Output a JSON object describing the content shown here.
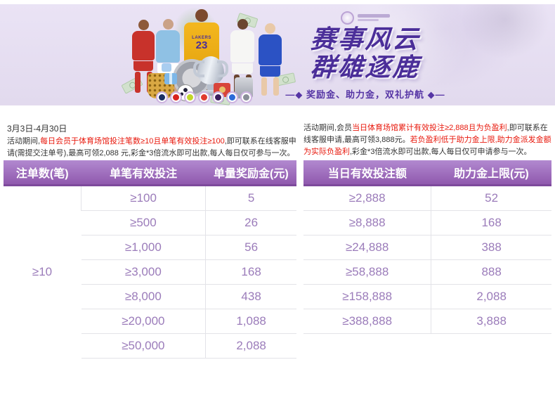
{
  "banner": {
    "title_line1": "赛事风云",
    "title_line2": "群雄逐鹿",
    "subtitle_full": "—◆ 奖励金、助力金，双礼护航 ◆—",
    "lakers_jersey": {
      "team": "LAKERS",
      "number": "23"
    },
    "badges": [
      {
        "name": "champions-league-badge-icon",
        "color": "#1b2f63"
      },
      {
        "name": "bundesliga-badge-icon",
        "color": "#d8231f"
      },
      {
        "name": "league-badge-green-icon",
        "color": "#c3d62a"
      },
      {
        "name": "league-badge-red-swoosh-icon",
        "color": "#e03a2f"
      },
      {
        "name": "premier-league-badge-icon",
        "color": "#3a1f5d"
      },
      {
        "name": "ligue1-badge-icon",
        "color": "#2b6bd8"
      },
      {
        "name": "serie-a-badge-icon",
        "color": "#8a8f98"
      }
    ]
  },
  "left_promo": {
    "date_range": "3月3日-4月30日",
    "segments": [
      {
        "text": "活动期间,",
        "red": false
      },
      {
        "text": "每日会员于体育场馆投注笔数≥10且单笔有效投注≥100",
        "red": true
      },
      {
        "text": ",即可联系在线客服申请(需提交注单号),最高可领2,088 元,彩金*3倍流水即可出款,每人每日仅可参与一次。",
        "red": false
      }
    ]
  },
  "right_promo": {
    "segments": [
      {
        "text": "活动期间,会员",
        "red": false
      },
      {
        "text": "当日体育场馆累计有效投注≥2,888且为负盈利",
        "red": true
      },
      {
        "text": ",即可联系在线客服申请,最高可领3,888元。",
        "red": false
      },
      {
        "text": "若负盈利低于助力金上限,助力金派发金额为实际负盈利",
        "red": true
      },
      {
        "text": ",彩金*3倍流水即可出款,每人每日仅可申请参与一次。",
        "red": false
      }
    ]
  },
  "left_table": {
    "headers": [
      "注单数(笔)",
      "单笔有效投注",
      "单量奖励金(元)"
    ],
    "span_value": "≥10",
    "rows": [
      [
        "≥100",
        "5"
      ],
      [
        "≥500",
        "26"
      ],
      [
        "≥1,000",
        "56"
      ],
      [
        "≥3,000",
        "168"
      ],
      [
        "≥8,000",
        "438"
      ],
      [
        "≥20,000",
        "1,088"
      ],
      [
        "≥50,000",
        "2,088"
      ]
    ]
  },
  "right_table": {
    "headers": [
      "当日有效投注额",
      "助力金上限(元)"
    ],
    "rows": [
      [
        "≥2,888",
        "52"
      ],
      [
        "≥8,888",
        "168"
      ],
      [
        "≥24,888",
        "388"
      ],
      [
        "≥58,888",
        "888"
      ],
      [
        "≥158,888",
        "2,088"
      ],
      [
        "≥388,888",
        "3,888"
      ]
    ]
  },
  "colors": {
    "header_purple": "#9a63b8",
    "accent_red": "#e8180c",
    "cell_purple": "#9b7cba",
    "banner_bg": "#e5def1",
    "title_purple": "#4b2e99"
  }
}
